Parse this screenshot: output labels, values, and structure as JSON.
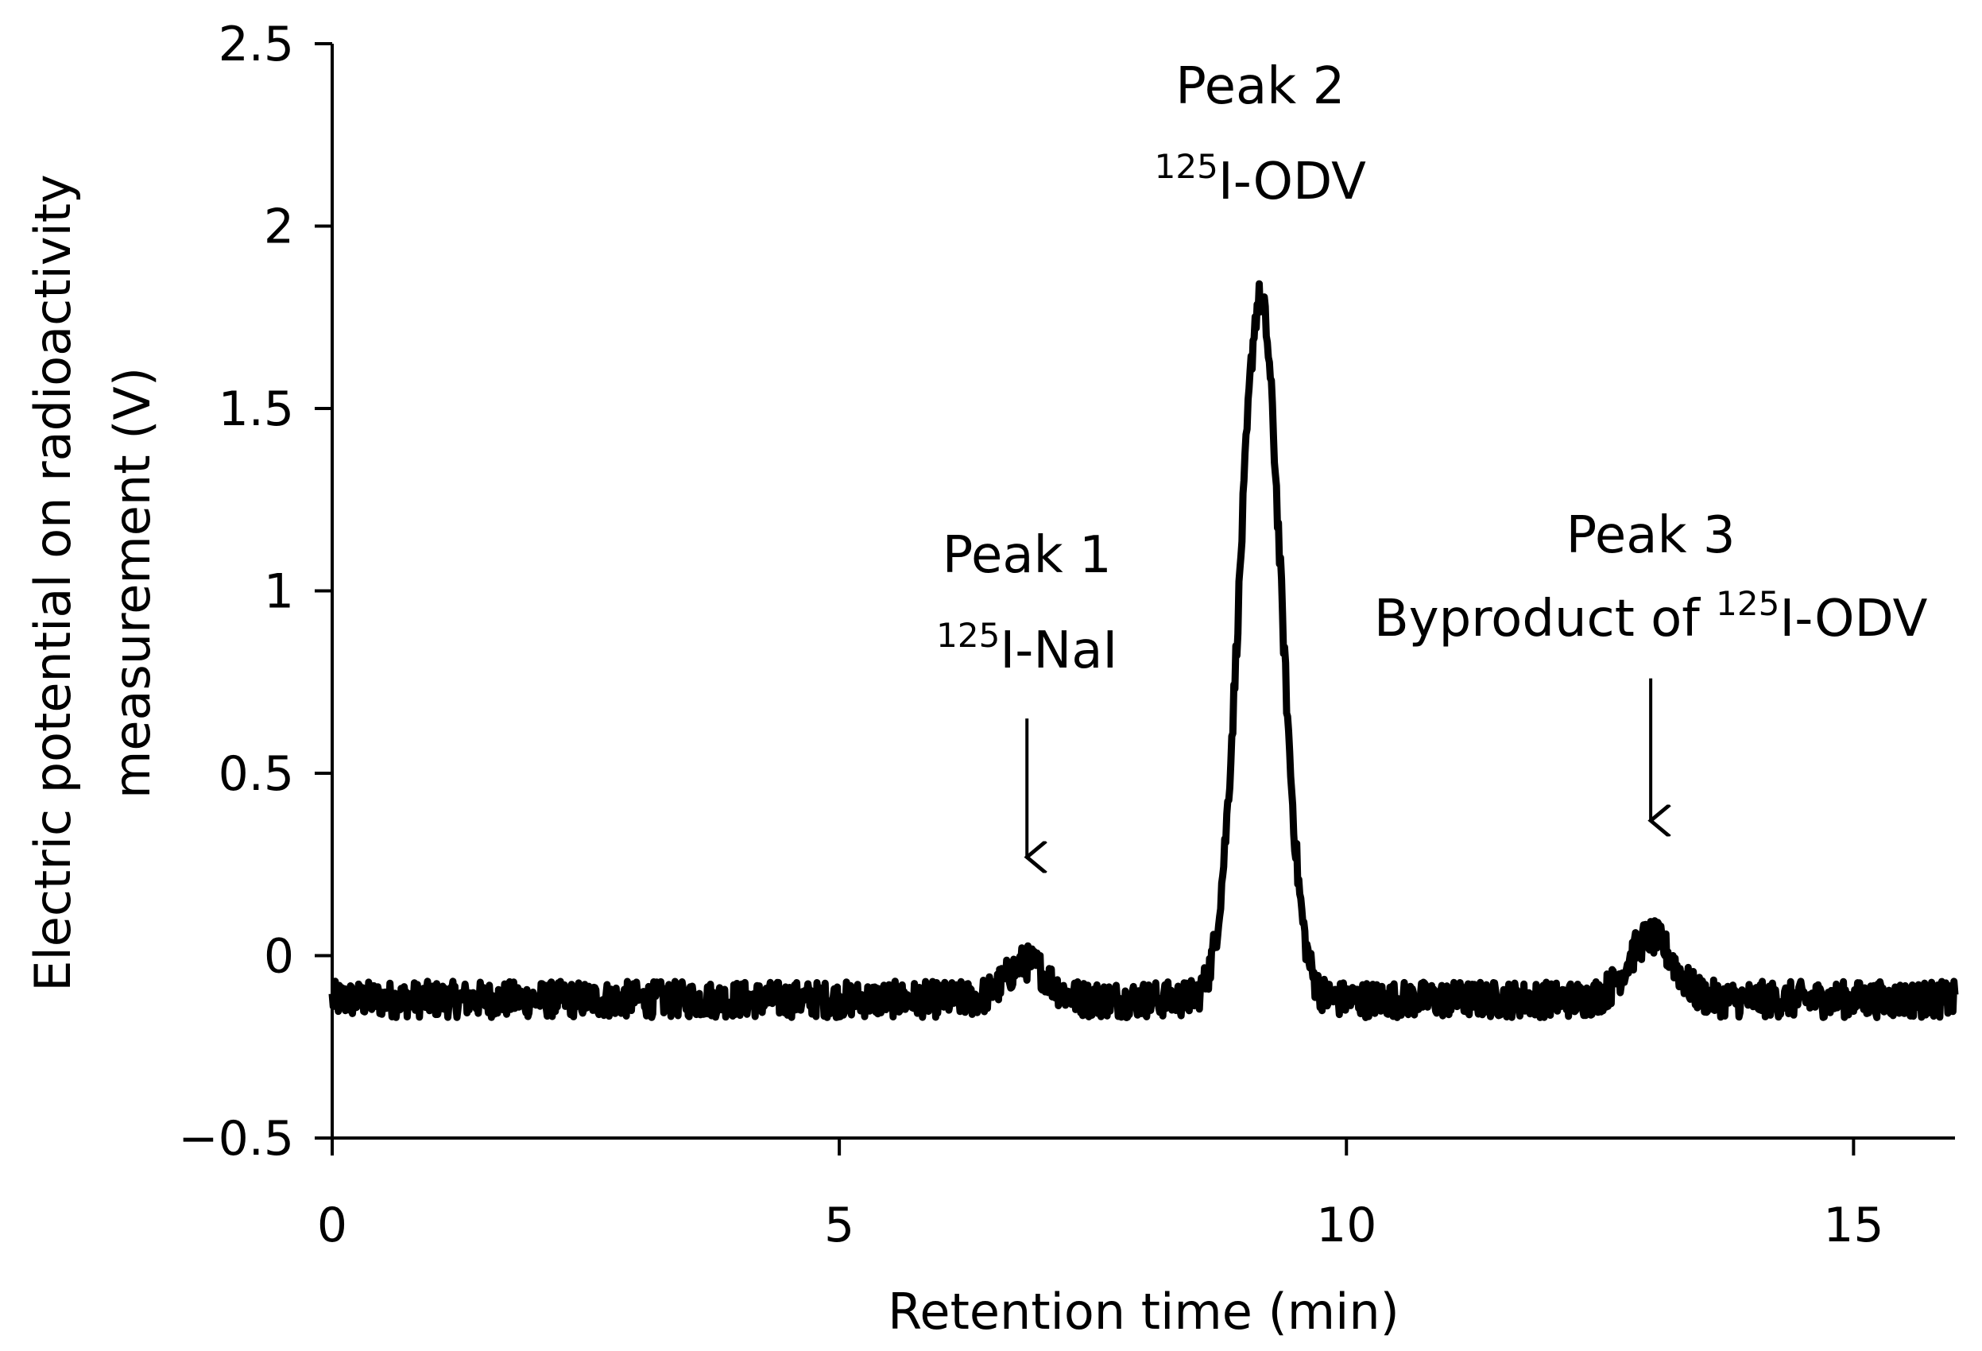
{
  "chart_data": {
    "type": "line",
    "title": "",
    "xlabel": "Retention time (min)",
    "ylabel_lines": [
      "Electric potential on radioactivity",
      "measurement (V)"
    ],
    "xlim": [
      0,
      16
    ],
    "ylim": [
      -0.5,
      2.5
    ],
    "xticks": [
      0,
      5,
      10,
      15
    ],
    "xtick_labels": [
      "0",
      "5",
      "10",
      "15"
    ],
    "yticks": [
      -0.5,
      0,
      0.5,
      1,
      1.5,
      2,
      2.5
    ],
    "ytick_labels": [
      "−0.5",
      "0",
      "0.5",
      "1",
      "1.5",
      "2",
      "2.5"
    ],
    "baseline": -0.12,
    "noise_amplitude": 0.05,
    "peaks": [
      {
        "name": "Peak 1",
        "time": 6.85,
        "height": 0.1,
        "width": 0.2
      },
      {
        "name": "Peak 2",
        "time": 9.15,
        "height": 1.92,
        "width": 0.2
      },
      {
        "name": "Peak 3",
        "time": 13.0,
        "height": 0.17,
        "width": 0.22
      }
    ],
    "annotations": [
      {
        "name": "peak-1-annotation",
        "title": "Peak 1",
        "sup": "125",
        "label_prefix": "",
        "label_suffix": "I-NaI",
        "x": 6.85,
        "arrow_from": 0.65,
        "arrow_to": 0.27
      },
      {
        "name": "peak-2-annotation",
        "title": "Peak 2",
        "sup": "125",
        "label_prefix": "",
        "label_suffix": "I-ODV",
        "x": 9.15
      },
      {
        "name": "peak-3-annotation",
        "title": "Peak 3",
        "sup": "125",
        "label_prefix": "Byproduct of ",
        "label_suffix": "I-ODV",
        "x": 13.0,
        "arrow_from": 0.76,
        "arrow_to": 0.37
      }
    ]
  }
}
